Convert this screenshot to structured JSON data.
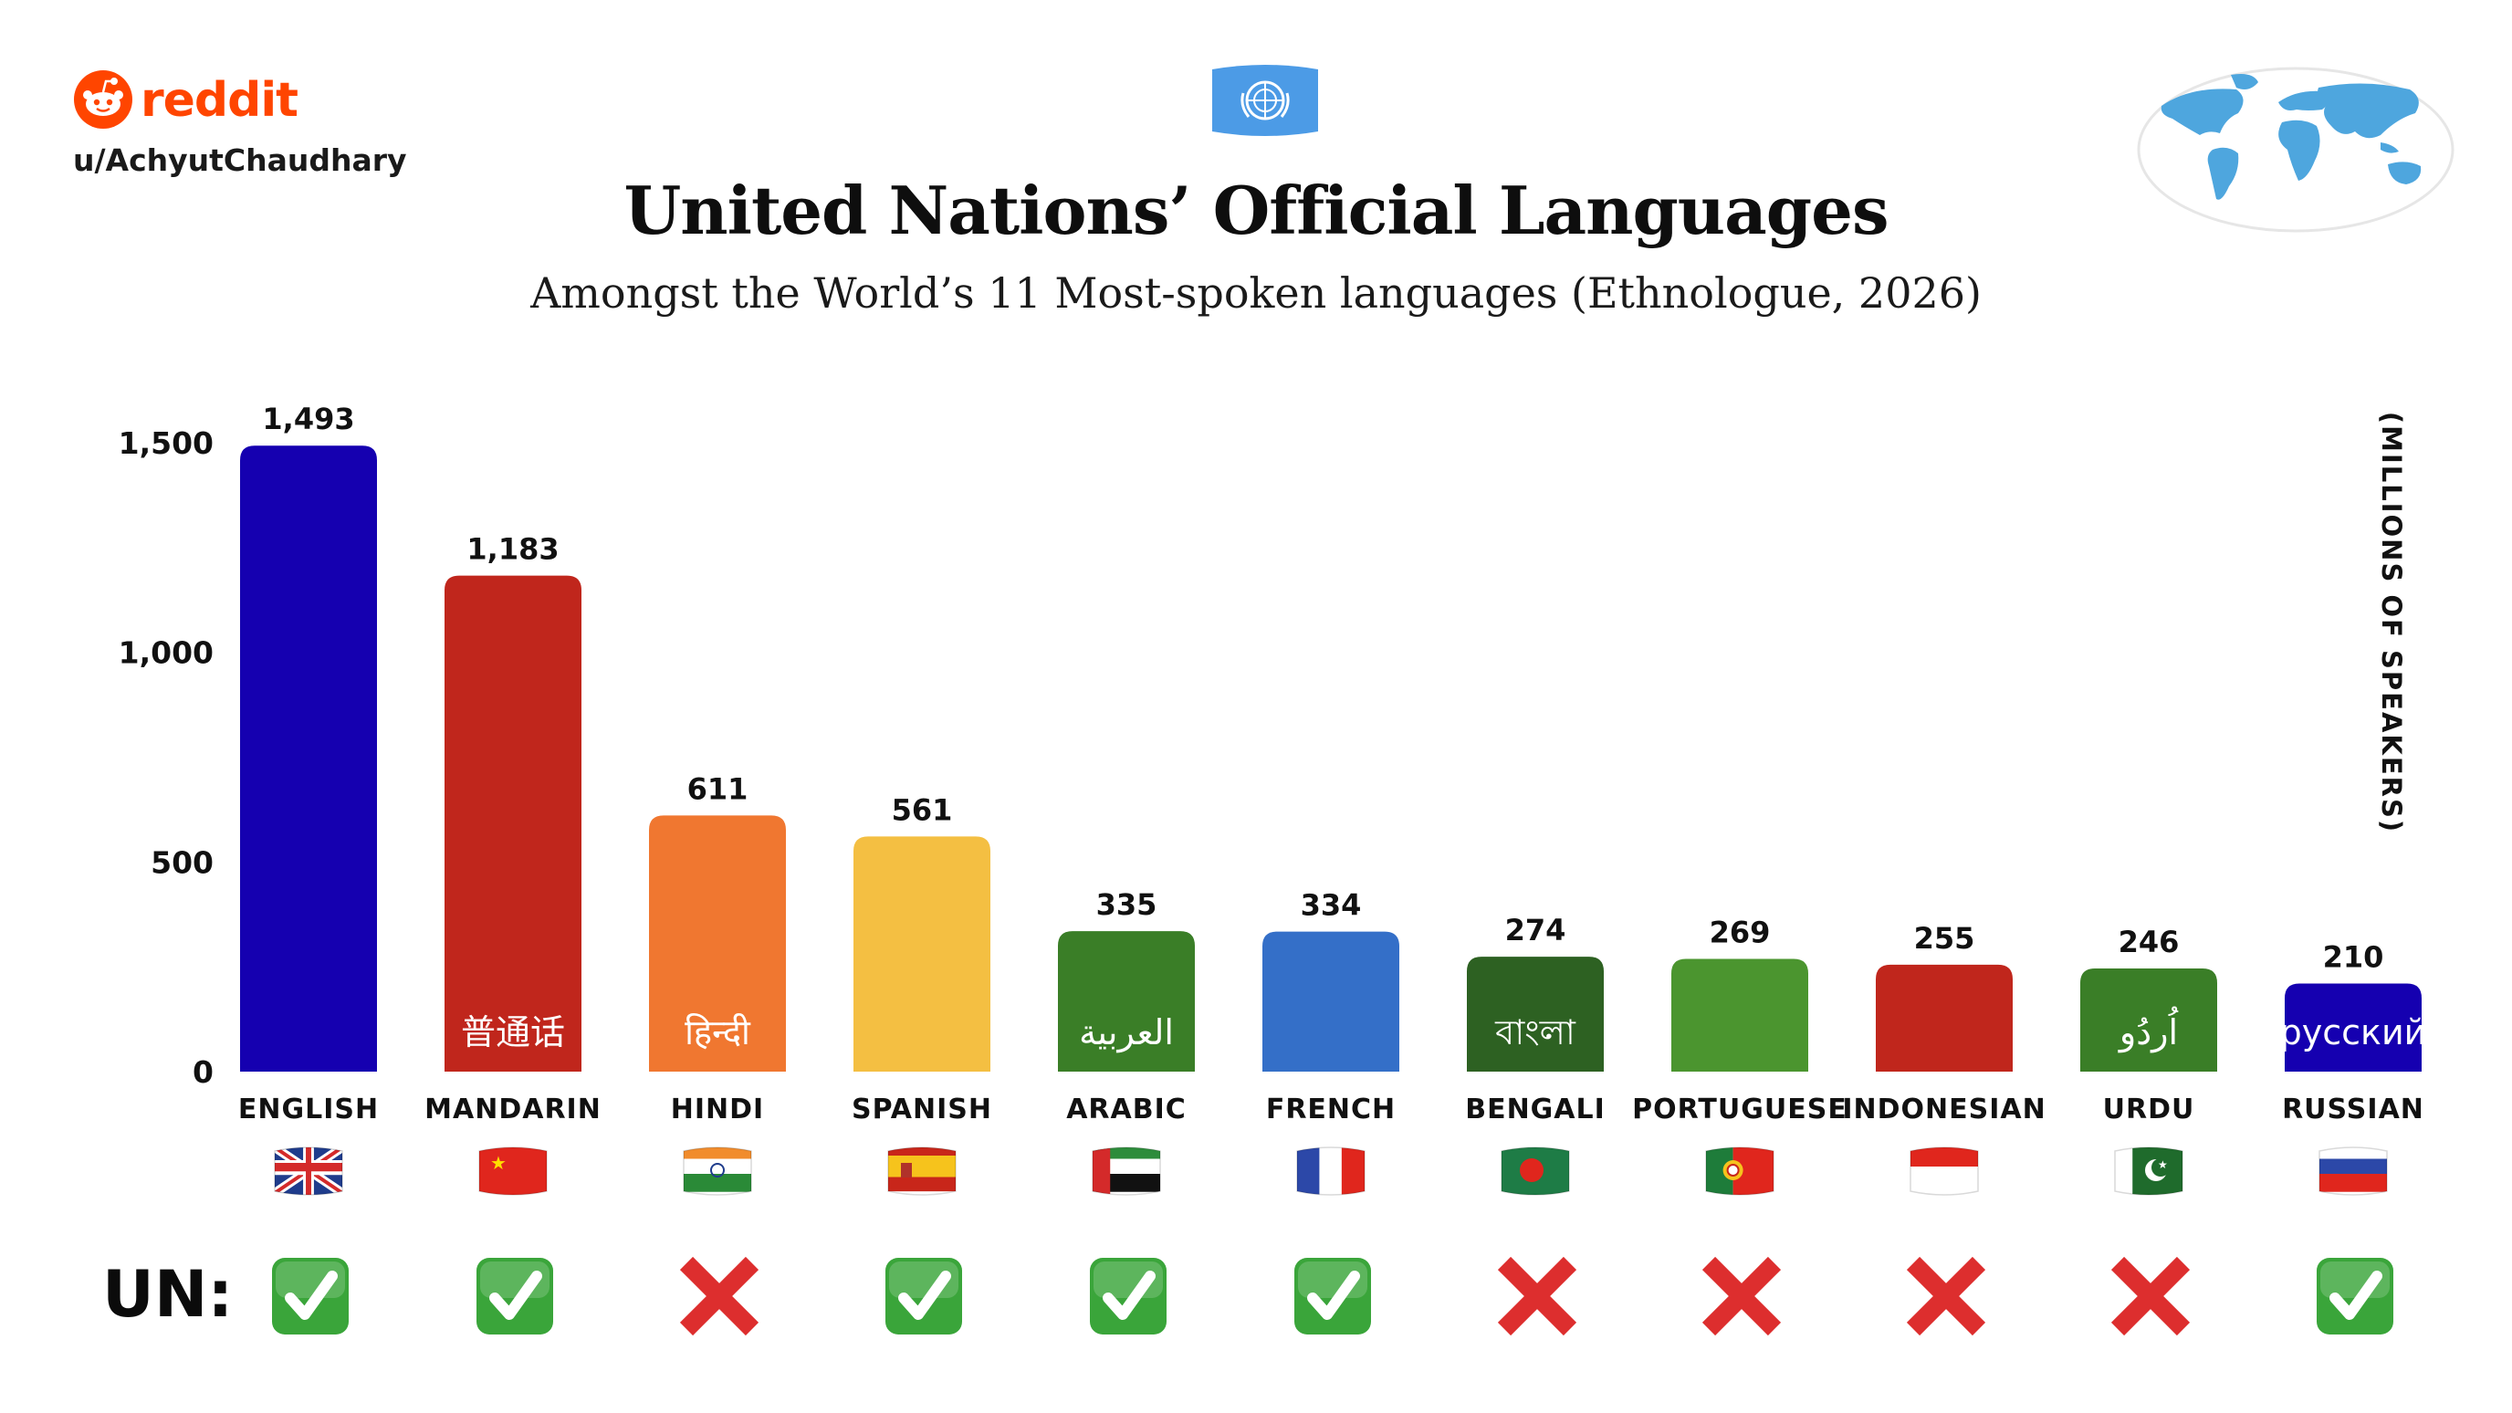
{
  "header": {
    "brand": "reddit",
    "username": "u/AchyutChaudhary",
    "title": "United Nations’ Official Languages",
    "subtitle": "Amongst the World’s 11 Most-spoken languages (Ethnologue, 2026)"
  },
  "icons": {
    "brand_logo": "reddit-logo-icon",
    "top_flag": "un-flag-icon",
    "map": "world-map-icon",
    "yes": "green-check-icon",
    "no": "red-x-icon"
  },
  "colors": {
    "check_green": "#3aa53a",
    "cross_red": "#dd2e2e",
    "reddit_orange": "#ff4500"
  },
  "un_row_label": "UN:",
  "chart_data": {
    "type": "bar",
    "title": "United Nations’ Official Languages",
    "subtitle": "Amongst the World’s 11 Most-spoken languages (Ethnologue, 2026)",
    "xlabel": "",
    "ylabel": "(MILLIONS OF SPEAKERS)",
    "ylim": [
      0,
      1500
    ],
    "yticks": [
      0,
      500,
      1000,
      1500
    ],
    "ytick_labels": [
      "0",
      "500",
      "1,000",
      "1,500"
    ],
    "grid": false,
    "categories": [
      "ENGLISH",
      "MANDARIN",
      "HINDI",
      "SPANISH",
      "ARABIC",
      "FRENCH",
      "BENGALI",
      "PORTUGUESE",
      "INDONESIAN",
      "URDU",
      "RUSSIAN"
    ],
    "values": [
      1493,
      1183,
      611,
      561,
      335,
      334,
      274,
      269,
      255,
      246,
      210
    ],
    "value_labels": [
      "1,493",
      "1,183",
      "611",
      "561",
      "335",
      "334",
      "274",
      "269",
      "255",
      "246",
      "210"
    ],
    "bar_colors": [
      "#1500b0",
      "#c0261c",
      "#f07730",
      "#f4bf42",
      "#3a7e27",
      "#346fc8",
      "#2d6122",
      "#4b952f",
      "#c0261c",
      "#3a7e27",
      "#1500b0"
    ],
    "native_names": [
      "",
      "普通话",
      "हिन्दी",
      "",
      "العربية",
      "",
      "বাংলা",
      "",
      "",
      "اُردُو",
      "русский"
    ],
    "flags": [
      "uk-flag-icon",
      "china-flag-icon",
      "india-flag-icon",
      "spain-flag-icon",
      "uae-flag-icon",
      "france-flag-icon",
      "bangladesh-flag-icon",
      "portugal-flag-icon",
      "indonesia-flag-icon",
      "pakistan-flag-icon",
      "russia-flag-icon"
    ],
    "un_official": [
      true,
      true,
      false,
      true,
      true,
      true,
      false,
      false,
      false,
      false,
      true
    ]
  }
}
